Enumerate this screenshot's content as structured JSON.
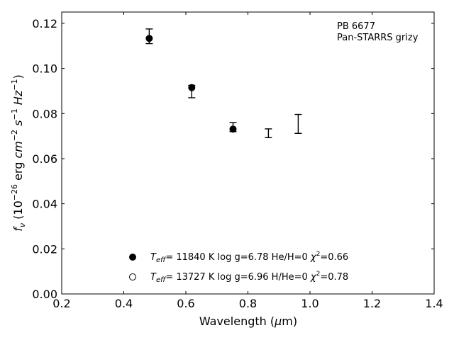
{
  "chart_data": {
    "type": "scatter",
    "title": "",
    "annotations": [
      "PB 6677",
      "Pan-STARRS grizy"
    ],
    "xlabel": {
      "text": "Wavelength (",
      "unit_symbol": "μ",
      "unit_rest": "m)"
    },
    "ylabel": {
      "sub_base": "f",
      "sub": "ν",
      "paren_open": "(10",
      "exp1": "−26",
      "erg": " erg ",
      "cm": "cm",
      "exp2": "−2",
      "s": "s",
      "exp3": "−1",
      "hz": "Hz",
      "exp4": "−1",
      "paren_close": ")"
    },
    "xlim": [
      0.2,
      1.4
    ],
    "ylim": [
      0.0,
      0.125
    ],
    "xticks": [
      "0.2",
      "0.4",
      "0.6",
      "0.8",
      "1.0",
      "1.2",
      "1.4"
    ],
    "yticks": [
      "0.00",
      "0.02",
      "0.04",
      "0.06",
      "0.08",
      "0.10",
      "0.12"
    ],
    "observed": [
      {
        "x": 0.482,
        "y": 0.1143,
        "lo": 0.111,
        "hi": 0.1175
      },
      {
        "x": 0.619,
        "y": 0.0897,
        "lo": 0.087,
        "hi": 0.0925
      },
      {
        "x": 0.752,
        "y": 0.074,
        "lo": 0.072,
        "hi": 0.076
      },
      {
        "x": 0.866,
        "y": 0.0712,
        "lo": 0.0693,
        "hi": 0.0732
      },
      {
        "x": 0.962,
        "y": 0.0754,
        "lo": 0.0712,
        "hi": 0.0796
      }
    ],
    "series": [
      {
        "name_parts": {
          "t": "T",
          "sub": "eff",
          "rest": "= 11840 K  log g=6.78  He/H=0  ",
          "chi": "χ",
          "sup": "2",
          "val": "=0.66"
        },
        "marker": "filled-circle",
        "points": [
          {
            "x": 0.482,
            "y": 0.1133
          },
          {
            "x": 0.619,
            "y": 0.0915
          },
          {
            "x": 0.752,
            "y": 0.0731
          }
        ]
      },
      {
        "name_parts": {
          "t": "T",
          "sub": "eff",
          "rest": "= 13727 K  log g=6.96  H/He=0  ",
          "chi": "χ",
          "sup": "2",
          "val": "=0.78"
        },
        "marker": "open-circle",
        "points": []
      }
    ],
    "legend_position": "bottom-center",
    "grid": false
  }
}
